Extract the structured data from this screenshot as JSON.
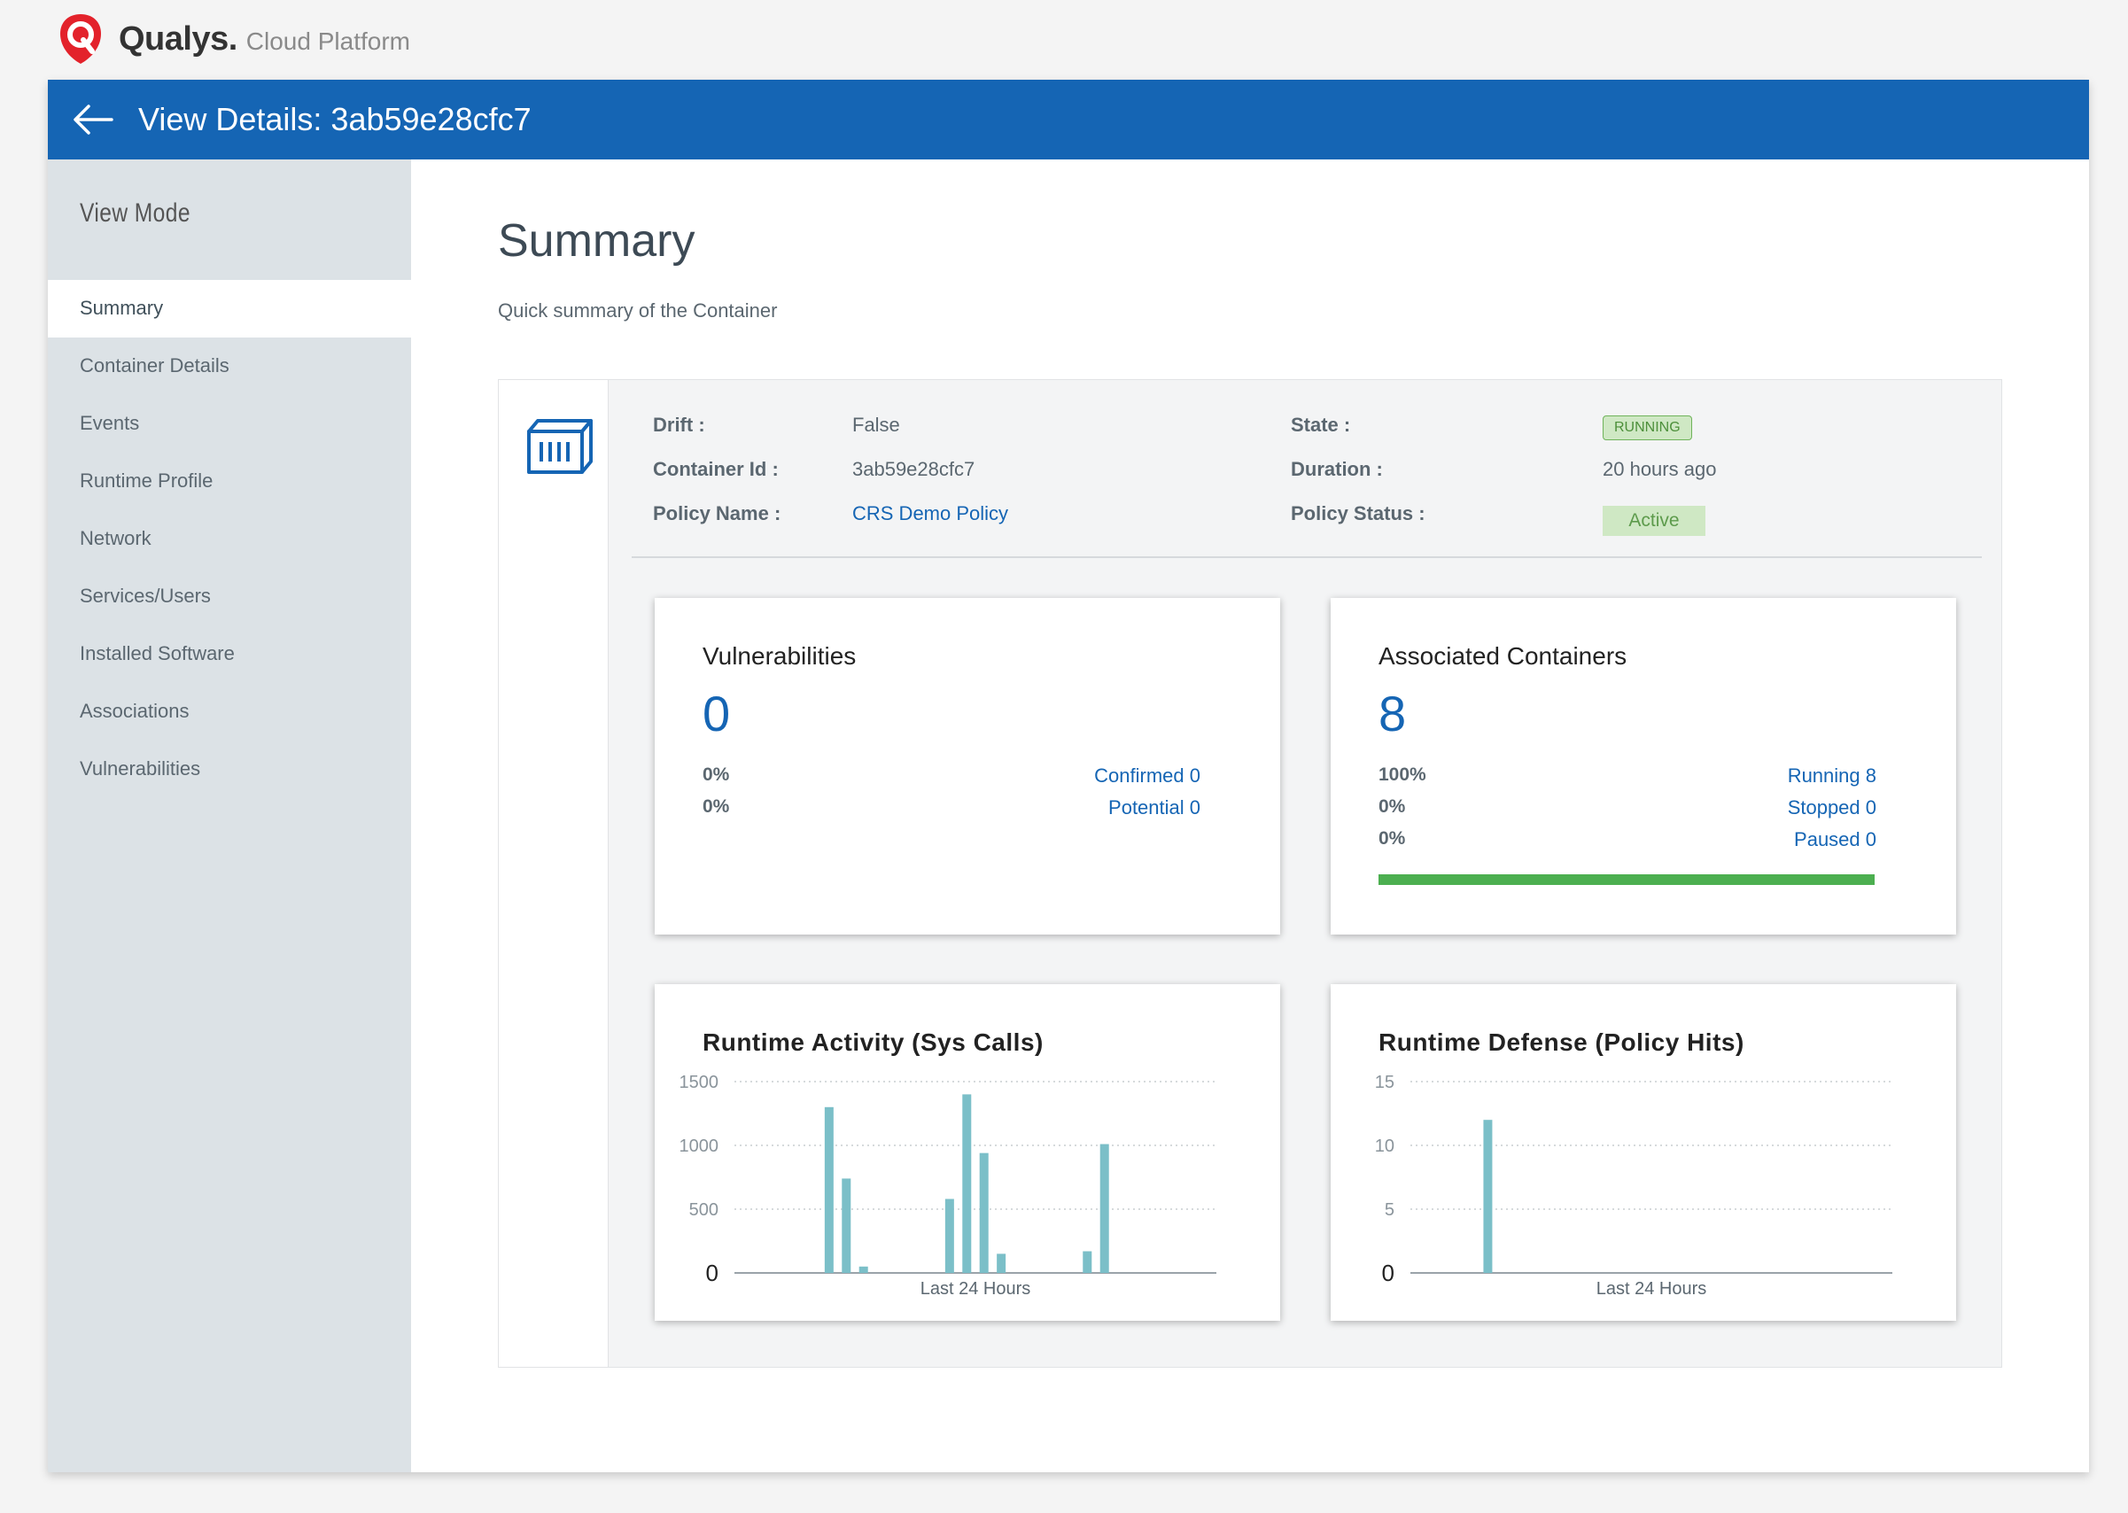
{
  "brand": {
    "name": "Qualys.",
    "subtitle": "Cloud Platform",
    "logo_icon": "qualys-shield-icon",
    "logo_color": "#e3222b"
  },
  "header": {
    "title": "View Details: 3ab59e28cfc7",
    "back_icon": "arrow-left-icon",
    "color": "#1565b4"
  },
  "sidebar": {
    "heading": "View Mode",
    "items": [
      {
        "label": "Summary",
        "active": true
      },
      {
        "label": "Container Details"
      },
      {
        "label": "Events"
      },
      {
        "label": "Runtime Profile"
      },
      {
        "label": "Network"
      },
      {
        "label": "Services/Users"
      },
      {
        "label": "Installed Software"
      },
      {
        "label": "Associations"
      },
      {
        "label": "Vulnerabilities"
      }
    ]
  },
  "summary": {
    "title": "Summary",
    "subtitle": "Quick summary of the Container",
    "icon": "container-icon",
    "info": {
      "drift_label": "Drift :",
      "drift_value": "False",
      "container_id_label": "Container Id :",
      "container_id_value": "3ab59e28cfc7",
      "policy_name_label": "Policy Name :",
      "policy_name_value": "CRS Demo Policy",
      "state_label": "State :",
      "state_value": "RUNNING",
      "duration_label": "Duration :",
      "duration_value": "20 hours ago",
      "policy_status_label": "Policy Status :",
      "policy_status_value": "Active"
    }
  },
  "vulnerabilities": {
    "title": "Vulnerabilities",
    "count": "0",
    "rows": [
      {
        "pct": "0%",
        "label": "Confirmed 0"
      },
      {
        "pct": "0%",
        "label": "Potential 0"
      }
    ]
  },
  "associated": {
    "title": "Associated Containers",
    "count": "8",
    "rows": [
      {
        "pct": "100%",
        "label": "Running 8"
      },
      {
        "pct": "0%",
        "label": "Stopped 0"
      },
      {
        "pct": "0%",
        "label": "Paused 0"
      }
    ],
    "running_fraction": 1.0,
    "bar_color": "#4caf50"
  },
  "chart_data": [
    {
      "type": "bar",
      "title": "Runtime Activity (Sys Calls)",
      "xlabel": "Last 24 Hours",
      "ylabel": "",
      "ylim": [
        0,
        1500
      ],
      "yticks": [
        "0",
        "500",
        "1000",
        "1500"
      ],
      "grid": true,
      "color": "#7bbfc8",
      "x": [
        5,
        6,
        7,
        12,
        13,
        14,
        15,
        20,
        21
      ],
      "values": [
        1300,
        740,
        50,
        580,
        1400,
        940,
        150,
        170,
        1010
      ],
      "n_slots": 28
    },
    {
      "type": "bar",
      "title": "Runtime Defense (Policy Hits)",
      "xlabel": "Last 24 Hours",
      "ylabel": "",
      "ylim": [
        0,
        15
      ],
      "yticks": [
        "0",
        "5",
        "10",
        "15"
      ],
      "grid": true,
      "color": "#7bbfc8",
      "x": [
        4
      ],
      "values": [
        12
      ],
      "n_slots": 28
    }
  ]
}
